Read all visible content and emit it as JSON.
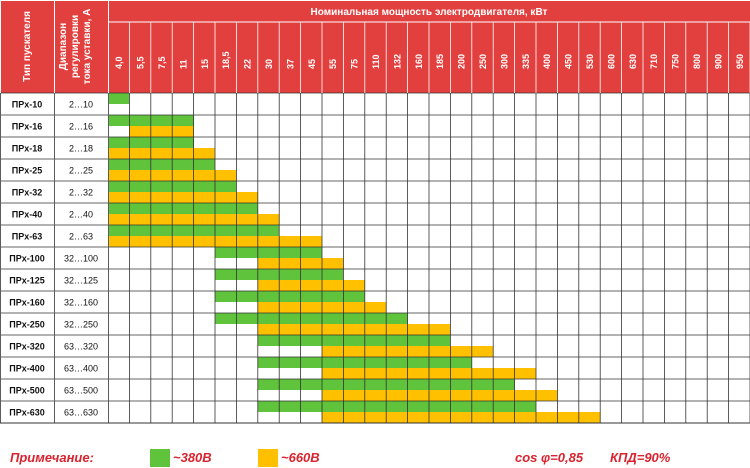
{
  "header": {
    "col_type": "Тип пускателя",
    "col_range": "Диапазон регулировки тока уставки, А",
    "power_title": "Номинальная мощность электродвигателя, кВт"
  },
  "powers": [
    "4,0",
    "5,5",
    "7,5",
    "11",
    "15",
    "18,5",
    "22",
    "30",
    "37",
    "45",
    "55",
    "75",
    "110",
    "132",
    "160",
    "185",
    "200",
    "250",
    "300",
    "335",
    "400",
    "450",
    "530",
    "600",
    "630",
    "710",
    "750",
    "800",
    "900",
    "950"
  ],
  "rows": [
    {
      "type": "ПРх-10",
      "range": "2…10",
      "green": [
        0,
        0
      ],
      "yellow": [
        -1,
        -1
      ]
    },
    {
      "type": "ПРх-16",
      "range": "2…16",
      "green": [
        0,
        3
      ],
      "yellow": [
        1,
        3
      ]
    },
    {
      "type": "ПРх-18",
      "range": "2…18",
      "green": [
        0,
        3
      ],
      "yellow": [
        0,
        4
      ]
    },
    {
      "type": "ПРх-25",
      "range": "2…25",
      "green": [
        0,
        4
      ],
      "yellow": [
        0,
        5
      ]
    },
    {
      "type": "ПРх-32",
      "range": "2…32",
      "green": [
        0,
        5
      ],
      "yellow": [
        0,
        6
      ]
    },
    {
      "type": "ПРх-40",
      "range": "2…40",
      "green": [
        0,
        6
      ],
      "yellow": [
        0,
        7
      ]
    },
    {
      "type": "ПРх-63",
      "range": "2…63",
      "green": [
        0,
        7
      ],
      "yellow": [
        0,
        9
      ]
    },
    {
      "type": "ПРх-100",
      "range": "32…100",
      "green": [
        5,
        9
      ],
      "yellow": [
        7,
        10
      ]
    },
    {
      "type": "ПРх-125",
      "range": "32…125",
      "green": [
        5,
        10
      ],
      "yellow": [
        7,
        11
      ]
    },
    {
      "type": "ПРх-160",
      "range": "32…160",
      "green": [
        5,
        11
      ],
      "yellow": [
        7,
        12
      ]
    },
    {
      "type": "ПРх-250",
      "range": "32…250",
      "green": [
        5,
        13
      ],
      "yellow": [
        7,
        15
      ]
    },
    {
      "type": "ПРх-320",
      "range": "63…320",
      "green": [
        7,
        15
      ],
      "yellow": [
        10,
        17
      ]
    },
    {
      "type": "ПРх-400",
      "range": "63…400",
      "green": [
        7,
        16
      ],
      "yellow": [
        10,
        19
      ]
    },
    {
      "type": "ПРх-500",
      "range": "63…500",
      "green": [
        7,
        18
      ],
      "yellow": [
        10,
        20
      ]
    },
    {
      "type": "ПРх-630",
      "range": "63…630",
      "green": [
        7,
        19
      ],
      "yellow": [
        10,
        22
      ]
    }
  ],
  "legend": {
    "note": "Примечание:",
    "green_label": "~380В",
    "yellow_label": "~660В",
    "cos": "cos φ=0,85",
    "kpd": "КПД=90%"
  },
  "colors": {
    "header_red": "#e2403f",
    "green": "#5fc43c",
    "yellow": "#ffc000",
    "grid": "#333333",
    "note_red": "#d9232e"
  }
}
